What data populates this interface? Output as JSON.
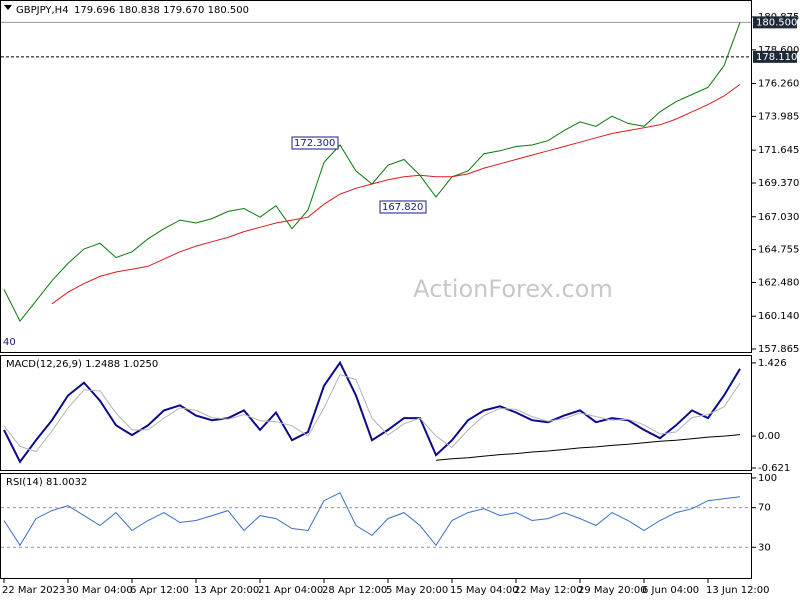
{
  "chart_data": [
    {
      "type": "line",
      "title": "GBPJPY,H4",
      "subtitle": "179.696 180.838 179.670 180.500",
      "watermark": "ActionForex.com",
      "categories": [
        "22 Mar 2023",
        null,
        null,
        null,
        "30 Mar 04:00",
        null,
        null,
        null,
        "6 Apr 12:00",
        null,
        null,
        null,
        "13 Apr 20:00",
        null,
        null,
        null,
        "21 Apr 04:00",
        null,
        null,
        null,
        "28 Apr 12:00",
        null,
        null,
        null,
        "5 May 20:00",
        null,
        null,
        null,
        "15 May 04:00",
        null,
        null,
        null,
        "22 May 12:00",
        null,
        null,
        null,
        "29 May 20:00",
        null,
        null,
        null,
        "6 Jun 04:00",
        null,
        null,
        null,
        "13 Jun 12:00",
        null,
        null
      ],
      "series": [
        {
          "name": "GBPJPY",
          "color": "#0b7a0b",
          "values": [
            162.0,
            159.8,
            161.2,
            162.6,
            163.8,
            164.8,
            165.2,
            164.2,
            164.6,
            165.5,
            166.2,
            166.8,
            166.6,
            166.9,
            167.4,
            167.6,
            167.0,
            167.8,
            166.2,
            167.5,
            170.8,
            172.0,
            170.2,
            169.3,
            170.6,
            171.0,
            169.9,
            168.4,
            169.8,
            170.2,
            171.4,
            171.6,
            171.9,
            172.0,
            172.3,
            173.0,
            173.6,
            173.3,
            174.0,
            173.5,
            173.3,
            174.3,
            175.0,
            175.5,
            176.0,
            177.5,
            180.5
          ]
        },
        {
          "color": "#d81e1e",
          "values": [
            null,
            null,
            null,
            161.0,
            161.8,
            162.4,
            162.9,
            163.2,
            163.4,
            163.6,
            164.1,
            164.6,
            165.0,
            165.3,
            165.6,
            166.0,
            166.3,
            166.6,
            166.8,
            167.0,
            167.9,
            168.6,
            169.0,
            169.3,
            169.6,
            169.8,
            169.9,
            169.8,
            169.8,
            170.0,
            170.4,
            170.7,
            171.0,
            171.3,
            171.6,
            171.9,
            172.2,
            172.5,
            172.8,
            173.0,
            173.2,
            173.4,
            173.8,
            174.3,
            174.8,
            175.4,
            176.2
          ]
        }
      ],
      "ylim": [
        157.66,
        181.98
      ],
      "yticks": [
        180.875,
        {
          "value": 178.6,
          "label": "178.600"
        },
        {
          "value": 176.26,
          "label": "176.260"
        },
        173.985,
        171.645,
        {
          "value": 169.37,
          "label": "169.370"
        },
        {
          "value": 167.03,
          "label": "167.030"
        },
        164.755,
        {
          "value": 162.48,
          "label": "162.480"
        },
        {
          "value": 160.14,
          "label": "160.140"
        },
        157.865
      ],
      "reference_lines": [
        {
          "value": 180.5,
          "label": "180.500",
          "style": "solid"
        },
        {
          "value": 178.11,
          "label": "178.110",
          "style": "dashed"
        }
      ],
      "annotations": [
        {
          "value": 172.3,
          "label": "172.300"
        },
        {
          "value": 167.82,
          "label": "167.820"
        },
        {
          "label": "40"
        }
      ]
    },
    {
      "type": "line",
      "title": "MACD(12,26,9) 1.2488 1.0250",
      "series": [
        {
          "color": "#0a0a8c",
          "values": [
            0.12,
            -0.5,
            -0.08,
            0.31,
            0.79,
            1.04,
            0.69,
            0.21,
            0.02,
            0.21,
            0.5,
            0.6,
            0.4,
            0.31,
            0.35,
            0.5,
            0.12,
            0.46,
            -0.08,
            0.08,
            0.98,
            1.43,
            0.79,
            -0.08,
            0.12,
            0.35,
            0.35,
            -0.37,
            -0.08,
            0.31,
            0.5,
            0.58,
            0.46,
            0.31,
            0.27,
            0.4,
            0.5,
            0.27,
            0.35,
            0.31,
            0.12,
            -0.04,
            0.21,
            0.5,
            0.35,
            0.79,
            1.31
          ]
        },
        {
          "color": "#b4b4b4",
          "values": [
            0.2,
            -0.2,
            -0.3,
            0.1,
            0.55,
            0.9,
            0.88,
            0.45,
            0.12,
            0.12,
            0.35,
            0.55,
            0.5,
            0.36,
            0.33,
            0.42,
            0.3,
            0.28,
            0.2,
            0.0,
            0.55,
            1.2,
            1.1,
            0.35,
            0.02,
            0.24,
            0.35,
            0.0,
            -0.22,
            0.12,
            0.4,
            0.54,
            0.52,
            0.38,
            0.29,
            0.34,
            0.45,
            0.38,
            0.31,
            0.33,
            0.22,
            0.04,
            0.08,
            0.36,
            0.42,
            0.57,
            1.03
          ]
        },
        {
          "color": "#000000",
          "values": [
            null,
            null,
            null,
            null,
            null,
            null,
            null,
            null,
            null,
            null,
            null,
            null,
            null,
            null,
            null,
            null,
            null,
            null,
            null,
            null,
            null,
            null,
            null,
            null,
            null,
            null,
            null,
            -0.47,
            -0.44,
            -0.42,
            -0.39,
            -0.36,
            -0.34,
            -0.31,
            -0.29,
            -0.26,
            -0.23,
            -0.21,
            -0.18,
            -0.16,
            -0.13,
            -0.1,
            -0.08,
            -0.05,
            -0.02,
            0.0,
            0.03
          ]
        }
      ],
      "ylim": [
        -0.66,
        1.56
      ],
      "yticks": [
        1.426,
        {
          "value": 0,
          "label": "0.00"
        },
        -0.621
      ]
    },
    {
      "type": "line",
      "title": "RSI(14) 81.0032",
      "series": [
        {
          "color": "#3a6fc8",
          "values": [
            57,
            32,
            59,
            67,
            72,
            62,
            52,
            65,
            47,
            57,
            65,
            55,
            57,
            62,
            67,
            47,
            62,
            59,
            49,
            47,
            77,
            85,
            52,
            42,
            59,
            65,
            52,
            32,
            57,
            65,
            69,
            62,
            65,
            57,
            59,
            65,
            59,
            52,
            65,
            57,
            47,
            57,
            65,
            69,
            77,
            79,
            81
          ]
        }
      ],
      "ylim": [
        0,
        104
      ],
      "yticks": [
        100,
        70,
        30
      ],
      "level_lines": [
        70,
        30
      ]
    }
  ]
}
